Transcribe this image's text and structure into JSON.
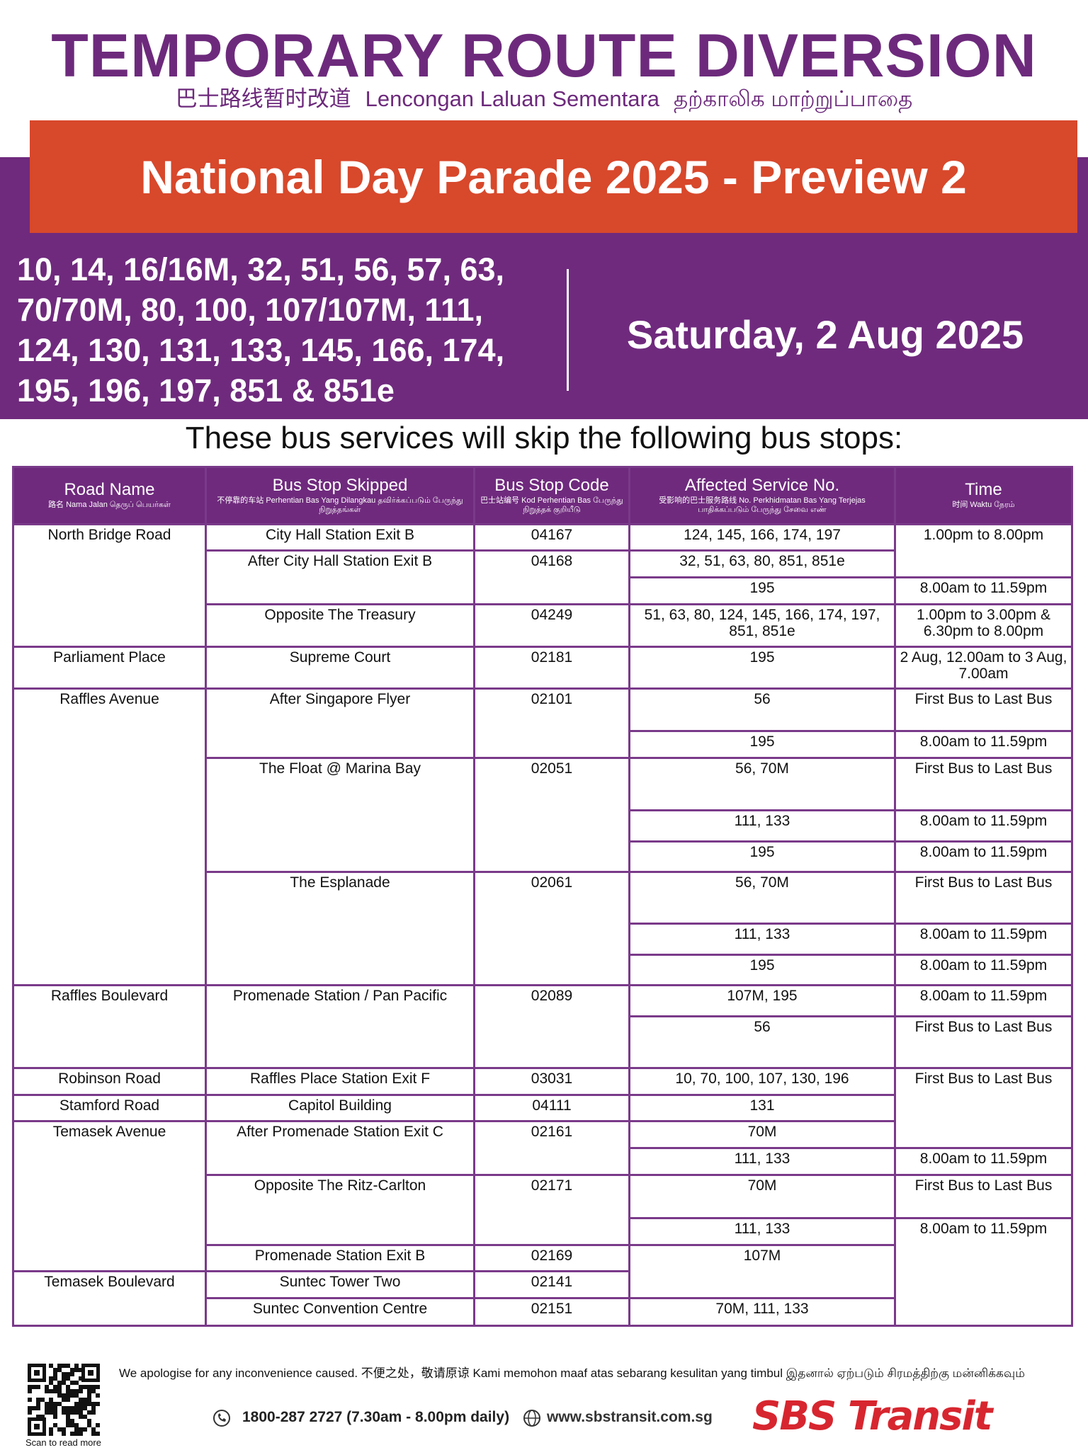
{
  "header": {
    "title": "TEMPORARY ROUTE DIVERSION",
    "subtitle_zh": "巴士路线暂时改道",
    "subtitle_ms": "Lencongan Laluan Sementara",
    "subtitle_ta": "தற்காலிக மாற்றுப்பாதை",
    "event": "National Day Parade 2025 - Preview 2",
    "services": [
      "10, 14, 16/16M, 32, 51, 56, 57, 63,",
      "70/70M, 80, 100, 107/107M, 111,",
      "124, 130, 131, 133, 145, 166, 174,",
      "195, 196, 197, 851 & 851e"
    ],
    "date": "Saturday, 2 Aug 2025"
  },
  "intro": "These bus services will skip the following bus stops:",
  "table": {
    "columns": [
      {
        "name": "Road Name",
        "sub": "路名 Nama Jalan தெருப் பெயர்கள்"
      },
      {
        "name": "Bus Stop Skipped",
        "sub": "不停靠的车站 Perhentian Bas Yang Dilangkau தவிர்க்கப்படும் பேருந்து நிறுத்தங்கள்"
      },
      {
        "name": "Bus Stop Code",
        "sub": "巴士站编号 Kod Perhentian Bas பேருந்து நிறுத்தக் குறியீடு"
      },
      {
        "name": "Affected Service No.",
        "sub": "受影响的巴士服务路线 No. Perkhidmatan Bas Yang Terjejas பாதிக்கப்படும் பேருந்து சேவை எண்"
      },
      {
        "name": "Time",
        "sub": "时间 Waktu நேரம்"
      }
    ],
    "rows": [
      [
        "North Bridge Road",
        "City Hall Station Exit B",
        "04167",
        "124, 145, 166, 174, 197",
        "1.00pm to 8.00pm"
      ],
      [
        "After City Hall Station Exit B",
        "04168",
        "32, 51, 63, 80, 851, 851e"
      ],
      [
        "195",
        "8.00am to 11.59pm"
      ],
      [
        "Opposite The Treasury",
        "04249",
        "51, 63, 80, 124, 145, 166, 174, 197, 851, 851e",
        "1.00pm to 3.00pm & 6.30pm to 8.00pm"
      ],
      [
        "Parliament Place",
        "Supreme Court",
        "02181",
        "195",
        "2 Aug, 12.00am to 3 Aug, 7.00am"
      ],
      [
        "Raffles Avenue",
        "After Singapore Flyer",
        "02101",
        "56",
        "First Bus to Last Bus"
      ],
      [
        "195",
        "8.00am to 11.59pm"
      ],
      [
        "The Float @ Marina Bay",
        "02051",
        "56, 70M",
        "First Bus to Last Bus"
      ],
      [
        "111, 133",
        "8.00am to 11.59pm"
      ],
      [
        "195",
        "8.00am to 11.59pm"
      ],
      [
        "The Esplanade",
        "02061",
        "56, 70M",
        "First Bus to Last Bus"
      ],
      [
        "111, 133",
        "8.00am to 11.59pm"
      ],
      [
        "195",
        "8.00am to 11.59pm"
      ],
      [
        "Raffles Boulevard",
        "Promenade Station / Pan Pacific",
        "02089",
        "107M, 195",
        "8.00am to 11.59pm"
      ],
      [
        "56",
        "First Bus to Last Bus"
      ],
      [
        "Robinson Road",
        "Raffles Place Station Exit F",
        "03031",
        "10, 70, 100, 107, 130, 196",
        "First Bus to Last Bus"
      ],
      [
        "Stamford Road",
        "Capitol Building",
        "04111",
        "131"
      ],
      [
        "Temasek Avenue",
        "After Promenade Station Exit C",
        "02161",
        "70M"
      ],
      [
        "111, 133",
        "8.00am to 11.59pm"
      ],
      [
        "Opposite The Ritz-Carlton",
        "02171",
        "70M",
        "First Bus to Last Bus"
      ],
      [
        "111, 133",
        "8.00am to 11.59pm"
      ],
      [
        "Promenade Station Exit B",
        "02169",
        "107M"
      ],
      [
        "Temasek Boulevard",
        "Suntec Tower Two",
        "02141"
      ],
      [
        "Suntec Convention Centre",
        "02151",
        "70M, 111, 133"
      ]
    ]
  },
  "footer": {
    "apology": "We apologise for any inconvenience caused. 不便之处，敬请原谅 Kami memohon maaf atas sebarang kesulitan yang timbul இதனால் ஏற்படும் சிரமத்திற்கு மன்னிக்கவும்",
    "phone": "1800-287 2727 (7.30am - 8.00pm daily)",
    "website": "www.sbstransit.com.sg",
    "qr_caption": "Scan to read more",
    "logo": "SBS Transit"
  }
}
